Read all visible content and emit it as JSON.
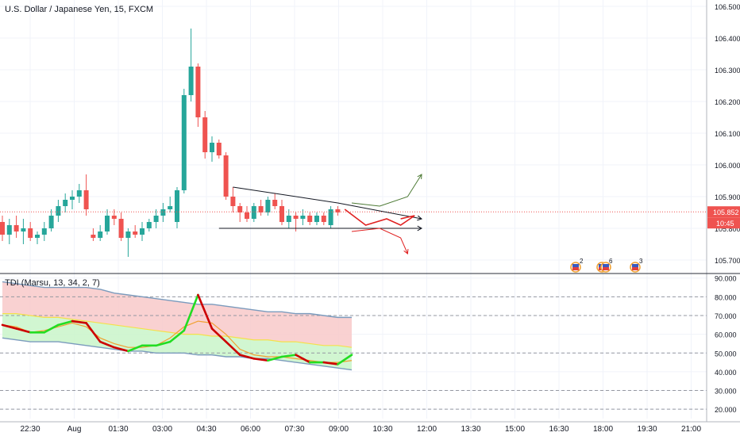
{
  "header": {
    "symbol_title": "U.S. Dollar / Japanese Yen, 15, FXCM",
    "indicator_title": "TDI (Marsu, 13, 34, 2, 7)"
  },
  "colors": {
    "bull": "#26a69a",
    "bear": "#ef5350",
    "grid": "#f0f3fa",
    "axis_text": "#131722",
    "price_line": "#ef5350",
    "upper_band": "#f8c9c9",
    "lower_band": "#c9f5c9",
    "rsi_line_up": "#22dd22",
    "rsi_line_down": "#cc0000",
    "signal_line": "#f0a030",
    "mid_line": "#f5e04a",
    "band_edge": "#7b9bbd"
  },
  "chart_data": [
    {
      "type": "candlestick",
      "title": "U.S. Dollar / Japanese Yen, 15, FXCM",
      "y_ticks": [
        "106.500",
        "106.400",
        "106.300",
        "106.200",
        "106.100",
        "106.000",
        "105.900",
        "105.800",
        "105.700"
      ],
      "ylim": [
        105.66,
        106.52
      ],
      "x_ticks": [
        "22:30",
        "Aug",
        "01:30",
        "03:00",
        "04:30",
        "06:00",
        "07:30",
        "09:00",
        "10:30",
        "12:00",
        "13:30",
        "15:00",
        "16:30",
        "18:00",
        "19:30",
        "21:00"
      ],
      "last_price": "105.852",
      "countdown": "10:45",
      "candles": [
        {
          "o": 105.82,
          "h": 105.84,
          "l": 105.76,
          "c": 105.78
        },
        {
          "o": 105.78,
          "h": 105.83,
          "l": 105.75,
          "c": 105.81
        },
        {
          "o": 105.81,
          "h": 105.84,
          "l": 105.77,
          "c": 105.79
        },
        {
          "o": 105.79,
          "h": 105.83,
          "l": 105.75,
          "c": 105.8
        },
        {
          "o": 105.8,
          "h": 105.82,
          "l": 105.76,
          "c": 105.77
        },
        {
          "o": 105.77,
          "h": 105.79,
          "l": 105.75,
          "c": 105.78
        },
        {
          "o": 105.78,
          "h": 105.82,
          "l": 105.76,
          "c": 105.8
        },
        {
          "o": 105.8,
          "h": 105.86,
          "l": 105.79,
          "c": 105.84
        },
        {
          "o": 105.84,
          "h": 105.89,
          "l": 105.82,
          "c": 105.87
        },
        {
          "o": 105.87,
          "h": 105.91,
          "l": 105.85,
          "c": 105.89
        },
        {
          "o": 105.89,
          "h": 105.92,
          "l": 105.86,
          "c": 105.9
        },
        {
          "o": 105.9,
          "h": 105.94,
          "l": 105.88,
          "c": 105.92
        },
        {
          "o": 105.92,
          "h": 105.97,
          "l": 105.84,
          "c": 105.86
        },
        {
          "o": 105.78,
          "h": 105.8,
          "l": 105.76,
          "c": 105.77
        },
        {
          "o": 105.77,
          "h": 105.81,
          "l": 105.76,
          "c": 105.79
        },
        {
          "o": 105.79,
          "h": 105.86,
          "l": 105.78,
          "c": 105.84
        },
        {
          "o": 105.84,
          "h": 105.86,
          "l": 105.81,
          "c": 105.83
        },
        {
          "o": 105.83,
          "h": 105.85,
          "l": 105.76,
          "c": 105.77
        },
        {
          "o": 105.77,
          "h": 105.8,
          "l": 105.71,
          "c": 105.79
        },
        {
          "o": 105.79,
          "h": 105.81,
          "l": 105.77,
          "c": 105.78
        },
        {
          "o": 105.78,
          "h": 105.82,
          "l": 105.76,
          "c": 105.8
        },
        {
          "o": 105.8,
          "h": 105.83,
          "l": 105.79,
          "c": 105.82
        },
        {
          "o": 105.82,
          "h": 105.86,
          "l": 105.8,
          "c": 105.84
        },
        {
          "o": 105.84,
          "h": 105.88,
          "l": 105.82,
          "c": 105.86
        },
        {
          "o": 105.86,
          "h": 105.9,
          "l": 105.85,
          "c": 105.87
        },
        {
          "o": 105.82,
          "h": 105.93,
          "l": 105.8,
          "c": 105.92
        },
        {
          "o": 105.92,
          "h": 106.24,
          "l": 105.91,
          "c": 106.22
        },
        {
          "o": 106.22,
          "h": 106.43,
          "l": 106.2,
          "c": 106.31
        },
        {
          "o": 106.31,
          "h": 106.32,
          "l": 106.12,
          "c": 106.15
        },
        {
          "o": 106.15,
          "h": 106.17,
          "l": 106.02,
          "c": 106.04
        },
        {
          "o": 106.04,
          "h": 106.09,
          "l": 106.01,
          "c": 106.07
        },
        {
          "o": 106.07,
          "h": 106.08,
          "l": 106.02,
          "c": 106.03
        },
        {
          "o": 106.03,
          "h": 106.04,
          "l": 105.89,
          "c": 105.9
        },
        {
          "o": 105.9,
          "h": 105.93,
          "l": 105.85,
          "c": 105.87
        },
        {
          "o": 105.87,
          "h": 105.88,
          "l": 105.82,
          "c": 105.85
        },
        {
          "o": 105.85,
          "h": 105.87,
          "l": 105.82,
          "c": 105.83
        },
        {
          "o": 105.83,
          "h": 105.88,
          "l": 105.82,
          "c": 105.87
        },
        {
          "o": 105.87,
          "h": 105.89,
          "l": 105.84,
          "c": 105.85
        },
        {
          "o": 105.85,
          "h": 105.9,
          "l": 105.84,
          "c": 105.89
        },
        {
          "o": 105.89,
          "h": 105.91,
          "l": 105.86,
          "c": 105.87
        },
        {
          "o": 105.87,
          "h": 105.89,
          "l": 105.81,
          "c": 105.82
        },
        {
          "o": 105.82,
          "h": 105.86,
          "l": 105.8,
          "c": 105.84
        },
        {
          "o": 105.84,
          "h": 105.85,
          "l": 105.79,
          "c": 105.83
        },
        {
          "o": 105.83,
          "h": 105.86,
          "l": 105.81,
          "c": 105.84
        },
        {
          "o": 105.84,
          "h": 105.85,
          "l": 105.81,
          "c": 105.82
        },
        {
          "o": 105.82,
          "h": 105.85,
          "l": 105.81,
          "c": 105.84
        },
        {
          "o": 105.84,
          "h": 105.85,
          "l": 105.81,
          "c": 105.82
        },
        {
          "o": 105.81,
          "h": 105.87,
          "l": 105.8,
          "c": 105.86
        },
        {
          "o": 105.86,
          "h": 105.87,
          "l": 105.84,
          "c": 105.85
        }
      ],
      "drawings": {
        "trendline_upper": [
          [
            33,
            105.93
          ],
          [
            48,
            105.88
          ],
          [
            60,
            105.83
          ]
        ],
        "trendline_lower": [
          [
            31,
            105.8
          ],
          [
            60,
            105.8
          ]
        ],
        "projection_up": [
          [
            50,
            105.88
          ],
          [
            54,
            105.87
          ],
          [
            58,
            105.9
          ],
          [
            60,
            105.97
          ]
        ],
        "projection_mid": [
          [
            49,
            105.86
          ],
          [
            52,
            105.81
          ],
          [
            55,
            105.83
          ],
          [
            57,
            105.81
          ],
          [
            59,
            105.84
          ],
          [
            57,
            105.83
          ]
        ],
        "projection_down": [
          [
            50,
            105.79
          ],
          [
            54,
            105.8
          ],
          [
            57,
            105.77
          ],
          [
            58,
            105.72
          ]
        ]
      },
      "event_markers": [
        {
          "count": "2"
        },
        {
          "count": "6"
        },
        {
          "count": "3"
        }
      ]
    },
    {
      "type": "line",
      "title": "TDI (Marsu, 13, 34, 2, 7)",
      "y_ticks": [
        "90.000",
        "80.000",
        "70.000",
        "60.000",
        "50.000",
        "40.000",
        "30.000",
        "20.000"
      ],
      "ylim": [
        15,
        92
      ],
      "levels": [
        80,
        70,
        50,
        30,
        20
      ],
      "x": [
        0,
        2,
        4,
        6,
        8,
        10,
        12,
        14,
        16,
        18,
        20,
        22,
        24,
        26,
        28,
        30,
        32,
        34,
        36,
        38,
        40,
        42,
        44,
        46,
        48,
        50
      ],
      "series": [
        {
          "key": "upper",
          "values": [
            88,
            87,
            86,
            85,
            85,
            85,
            85,
            84,
            82,
            81,
            80,
            79,
            78,
            77,
            76,
            76,
            75,
            74,
            73,
            72,
            72,
            71,
            71,
            70,
            69,
            69
          ]
        },
        {
          "key": "mid",
          "values": [
            71,
            71,
            70,
            69,
            69,
            68,
            67,
            66,
            65,
            64,
            63,
            62,
            61,
            60,
            60,
            59,
            59,
            58,
            57,
            57,
            56,
            56,
            55,
            54,
            54,
            53
          ]
        },
        {
          "key": "lower",
          "values": [
            58,
            57,
            56,
            56,
            56,
            55,
            54,
            53,
            52,
            51,
            51,
            50,
            50,
            50,
            49,
            49,
            48,
            48,
            47,
            47,
            46,
            45,
            44,
            43,
            42,
            41
          ]
        },
        {
          "key": "signal",
          "values": [
            65,
            64,
            61,
            62,
            64,
            66,
            64,
            58,
            55,
            53,
            53,
            54,
            58,
            64,
            67,
            66,
            60,
            52,
            49,
            48,
            48,
            47,
            46,
            45,
            45,
            46
          ]
        },
        {
          "key": "rsi",
          "values": [
            65,
            63,
            61,
            61,
            65,
            67,
            66,
            56,
            53,
            51,
            54,
            54,
            56,
            62,
            81,
            63,
            56,
            49,
            47,
            46,
            48,
            49,
            45,
            45,
            44,
            49
          ]
        }
      ]
    }
  ]
}
